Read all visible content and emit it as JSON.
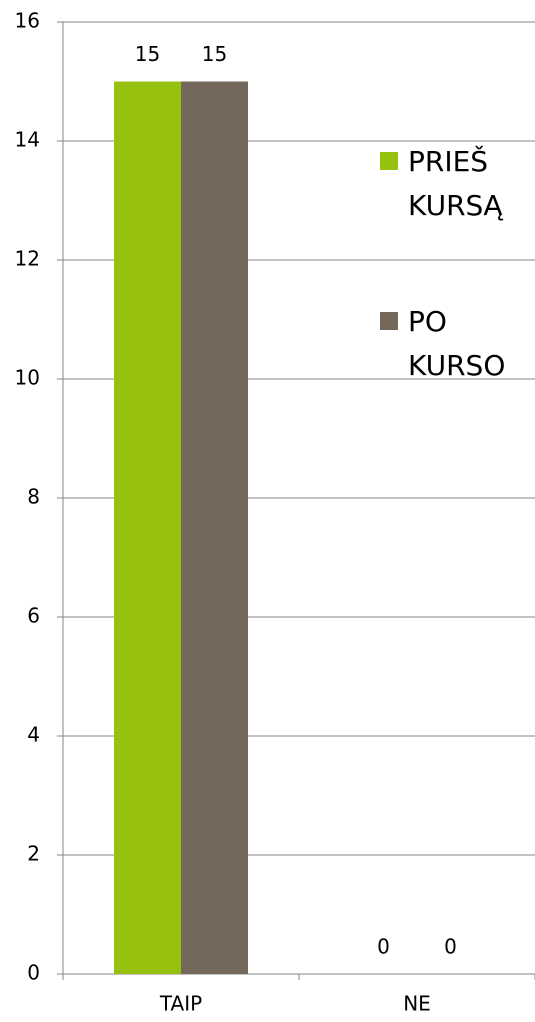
{
  "chart_data": {
    "type": "bar",
    "categories": [
      "TAIP",
      "NE"
    ],
    "series": [
      {
        "name": "PRIEŠ KURSĄ",
        "color": "#97c10f",
        "values": [
          15,
          0
        ]
      },
      {
        "name": "PO KURSO",
        "color": "#73685a",
        "values": [
          15,
          0
        ]
      }
    ],
    "ylim": [
      0,
      16
    ],
    "yticks": [
      0,
      2,
      4,
      6,
      8,
      10,
      12,
      14,
      16
    ],
    "grid": true,
    "legend": "right"
  }
}
